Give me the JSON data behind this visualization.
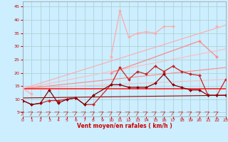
{
  "background_color": "#cceeff",
  "grid_color": "#aacccc",
  "x_label": "Vent moyen/en rafales ( km/h )",
  "x_ticks": [
    0,
    1,
    2,
    3,
    4,
    5,
    6,
    7,
    8,
    9,
    10,
    11,
    12,
    13,
    14,
    15,
    16,
    17,
    18,
    19,
    20,
    21,
    22,
    23
  ],
  "y_ticks": [
    5,
    10,
    15,
    20,
    25,
    30,
    35,
    40,
    45
  ],
  "ylim": [
    3.5,
    47
  ],
  "xlim": [
    0,
    23
  ],
  "series": [
    {
      "color": "#ffaaaa",
      "linewidth": 0.9,
      "marker": "D",
      "markersize": 2.0,
      "data_x": [
        0,
        1,
        2,
        3,
        4,
        5,
        6,
        7,
        8,
        9,
        10,
        11,
        12,
        13,
        14,
        15,
        16,
        17,
        18,
        19,
        20,
        21,
        22,
        23
      ],
      "data_y": [
        14.0,
        12.0,
        null,
        null,
        null,
        null,
        null,
        null,
        null,
        null,
        26.0,
        43.5,
        33.5,
        35.0,
        35.5,
        35.0,
        37.5,
        37.5,
        null,
        null,
        null,
        null,
        37.5,
        null
      ]
    },
    {
      "color": "#ffaaaa",
      "linewidth": 0.8,
      "marker": null,
      "markersize": 0,
      "data_x": [
        0,
        23
      ],
      "data_y": [
        14.0,
        38.0
      ]
    },
    {
      "color": "#ffbbbb",
      "linewidth": 0.8,
      "marker": null,
      "markersize": 0,
      "data_x": [
        0,
        23
      ],
      "data_y": [
        14.0,
        17.5
      ]
    },
    {
      "color": "#ffbbbb",
      "linewidth": 0.8,
      "marker": null,
      "markersize": 0,
      "data_x": [
        0,
        23
      ],
      "data_y": [
        14.0,
        29.0
      ]
    },
    {
      "color": "#ff8888",
      "linewidth": 0.8,
      "marker": null,
      "markersize": 0,
      "data_x": [
        0,
        23
      ],
      "data_y": [
        14.0,
        22.0
      ]
    },
    {
      "color": "#ff2222",
      "linewidth": 1.2,
      "marker": null,
      "markersize": 0,
      "data_x": [
        0,
        23
      ],
      "data_y": [
        14.0,
        14.0
      ]
    },
    {
      "color": "#990000",
      "linewidth": 0.8,
      "marker": null,
      "markersize": 0,
      "data_x": [
        0,
        23
      ],
      "data_y": [
        10.5,
        11.5
      ]
    },
    {
      "color": "#ff8888",
      "linewidth": 0.9,
      "marker": "D",
      "markersize": 2.0,
      "data_x": [
        10,
        20,
        22
      ],
      "data_y": [
        20.0,
        32.0,
        26.0
      ]
    },
    {
      "color": "#cc2222",
      "linewidth": 0.9,
      "marker": "D",
      "markersize": 2.0,
      "data_x": [
        0,
        1,
        2,
        3,
        4,
        5,
        6,
        7,
        8,
        10,
        11,
        12,
        13,
        14,
        15,
        16,
        17,
        18,
        19,
        20,
        21,
        22,
        23
      ],
      "data_y": [
        9.5,
        8.0,
        8.5,
        9.5,
        9.5,
        10.0,
        10.5,
        8.0,
        8.0,
        15.5,
        22.0,
        17.5,
        20.5,
        19.5,
        22.5,
        20.5,
        22.5,
        20.5,
        19.5,
        19.0,
        11.5,
        11.5,
        17.5
      ]
    },
    {
      "color": "#880000",
      "linewidth": 0.9,
      "marker": "D",
      "markersize": 2.0,
      "data_x": [
        0,
        1,
        2,
        3,
        4,
        5,
        6,
        7,
        8,
        10,
        11,
        12,
        13,
        14,
        15,
        16,
        17,
        18,
        19,
        20,
        21,
        22,
        23
      ],
      "data_y": [
        9.5,
        8.0,
        8.5,
        13.5,
        8.5,
        10.0,
        10.5,
        8.0,
        11.5,
        15.5,
        15.5,
        14.5,
        14.5,
        14.5,
        16.0,
        19.5,
        15.5,
        14.5,
        13.5,
        13.5,
        11.5,
        11.5,
        11.5
      ]
    }
  ]
}
